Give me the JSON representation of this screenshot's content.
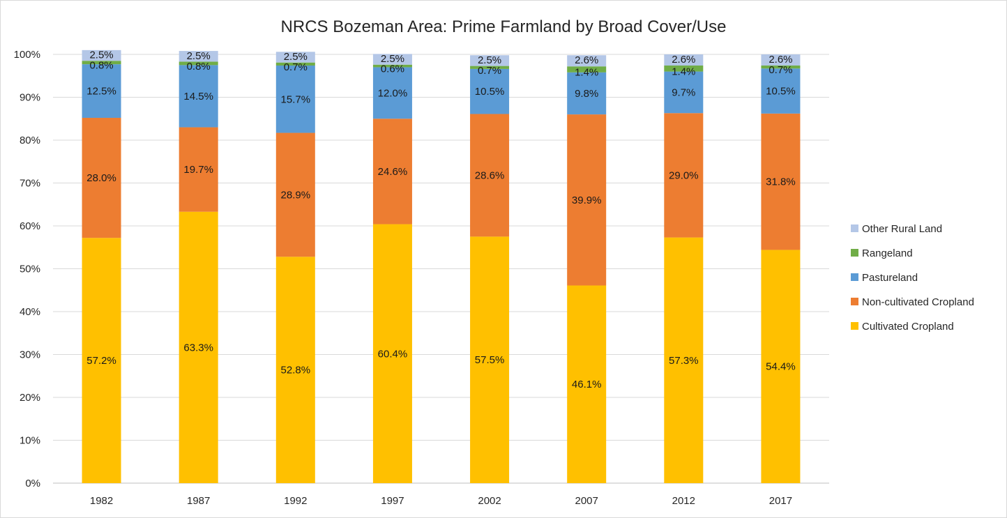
{
  "chart_data": {
    "type": "bar",
    "stacked": true,
    "title": "NRCS Bozeman Area:  Prime Farmland by Broad Cover/Use",
    "xlabel": "",
    "ylabel": "",
    "ylim": [
      0,
      100
    ],
    "y_ticks": [
      "0%",
      "10%",
      "20%",
      "30%",
      "40%",
      "50%",
      "60%",
      "70%",
      "80%",
      "90%",
      "100%"
    ],
    "grid": true,
    "legend_position": "right",
    "categories": [
      "1982",
      "1987",
      "1992",
      "1997",
      "2002",
      "2007",
      "2012",
      "2017"
    ],
    "series": [
      {
        "name": "Cultivated Cropland",
        "color": "#FFC000",
        "values": [
          57.2,
          63.3,
          52.8,
          60.4,
          57.5,
          46.1,
          57.3,
          54.4
        ],
        "labels": [
          "57.2%",
          "63.3%",
          "52.8%",
          "60.4%",
          "57.5%",
          "46.1%",
          "57.3%",
          "54.4%"
        ]
      },
      {
        "name": "Non-cultivated Cropland",
        "color": "#ED7D31",
        "values": [
          28.0,
          19.7,
          28.9,
          24.6,
          28.6,
          39.9,
          29.0,
          31.8
        ],
        "labels": [
          "28.0%",
          "19.7%",
          "28.9%",
          "24.6%",
          "28.6%",
          "39.9%",
          "29.0%",
          "31.8%"
        ]
      },
      {
        "name": "Pastureland",
        "color": "#5B9BD5",
        "values": [
          12.5,
          14.5,
          15.7,
          12.0,
          10.5,
          9.8,
          9.7,
          10.5
        ],
        "labels": [
          "12.5%",
          "14.5%",
          "15.7%",
          "12.0%",
          "10.5%",
          "9.8%",
          "9.7%",
          "10.5%"
        ]
      },
      {
        "name": "Rangeland",
        "color": "#70AD47",
        "values": [
          0.8,
          0.8,
          0.7,
          0.6,
          0.7,
          1.4,
          1.4,
          0.7
        ],
        "labels": [
          "0.8%",
          "0.8%",
          "0.7%",
          "0.6%",
          "0.7%",
          "1.4%",
          "1.4%",
          "0.7%"
        ]
      },
      {
        "name": "Other Rural Land",
        "color": "#B4C7E7",
        "values": [
          2.5,
          2.5,
          2.5,
          2.5,
          2.5,
          2.6,
          2.6,
          2.6
        ],
        "labels": [
          "2.5%",
          "2.5%",
          "2.5%",
          "2.5%",
          "2.5%",
          "2.6%",
          "2.6%",
          "2.6%"
        ]
      }
    ]
  }
}
